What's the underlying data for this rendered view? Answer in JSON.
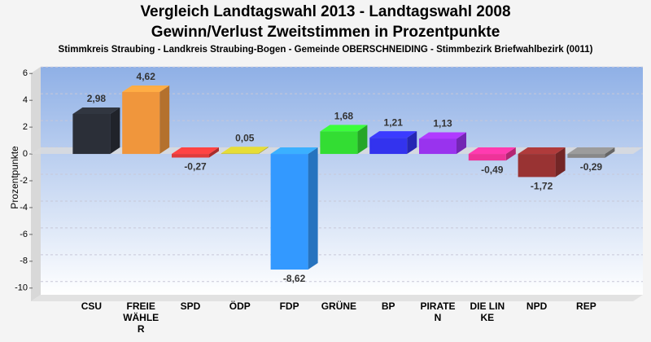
{
  "chart_data": {
    "type": "bar",
    "title": "Vergleich Landtagswahl 2013 - Landtagswahl 2008",
    "subtitle": "Gewinn/Verlust Zweitstimmen in Prozentpunkte",
    "description": "Stimmkreis Straubing - Landkreis Straubing-Bogen - Gemeinde OBERSCHNEIDING - Stimmbezirk Briefwahlbezirk  (0011)",
    "y_label": "Prozentpunkte",
    "categories": [
      "CSU",
      "FREIE WÄHLER",
      "SPD",
      "ÖDP",
      "FDP",
      "GRÜNE",
      "BP",
      "PIRATEN",
      "DIE LINKE",
      "NPD",
      "REP"
    ],
    "values": [
      2.98,
      4.62,
      -0.27,
      0.05,
      -8.62,
      1.68,
      1.21,
      1.13,
      -0.49,
      -1.72,
      -0.29
    ],
    "value_labels": [
      "2,98",
      "4,62",
      "-0,27",
      "0,05",
      "-8,62",
      "1,68",
      "1,21",
      "1,13",
      "-0,49",
      "-1,72",
      "-0,29"
    ],
    "colors": [
      "#2b2f38",
      "#f0963c",
      "#e03a3a",
      "#c8c030",
      "#3399ff",
      "#33dd33",
      "#3333ee",
      "#9933ee",
      "#ee3399",
      "#993333",
      "#888888"
    ],
    "ylim": [
      -10.5,
      6.5
    ],
    "yticks": [
      -10,
      -8,
      -6,
      -4,
      -2,
      0,
      2,
      4,
      6
    ],
    "grid": true
  }
}
